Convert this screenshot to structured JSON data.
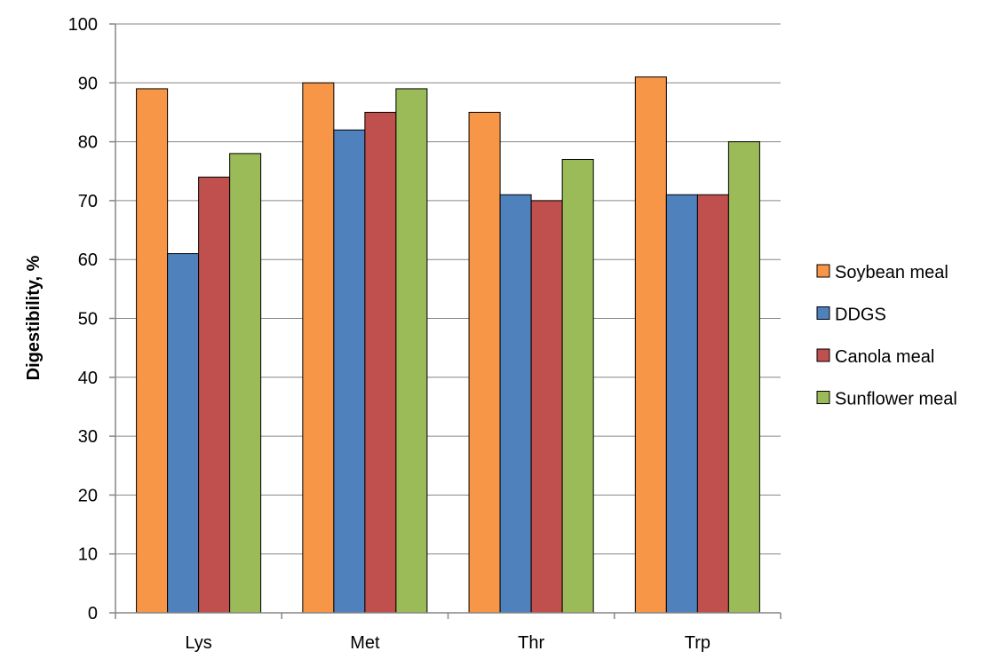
{
  "chart_data": {
    "type": "bar",
    "title": "",
    "xlabel": "",
    "ylabel": "Digestibility, %",
    "ylim": [
      0,
      100
    ],
    "yticks": [
      0,
      10,
      20,
      30,
      40,
      50,
      60,
      70,
      80,
      90,
      100
    ],
    "grid": true,
    "legend_position": "right",
    "categories": [
      "Lys",
      "Met",
      "Thr",
      "Trp"
    ],
    "series": [
      {
        "name": "Soybean meal",
        "color": "#F79646",
        "values": [
          89,
          90,
          85,
          91
        ]
      },
      {
        "name": "DDGS",
        "color": "#4F81BD",
        "values": [
          61,
          82,
          71,
          71
        ]
      },
      {
        "name": "Canola meal",
        "color": "#C0504D",
        "values": [
          74,
          85,
          70,
          71
        ]
      },
      {
        "name": "Sunflower meal",
        "color": "#9BBB59",
        "values": [
          78,
          89,
          77,
          80
        ]
      }
    ]
  }
}
